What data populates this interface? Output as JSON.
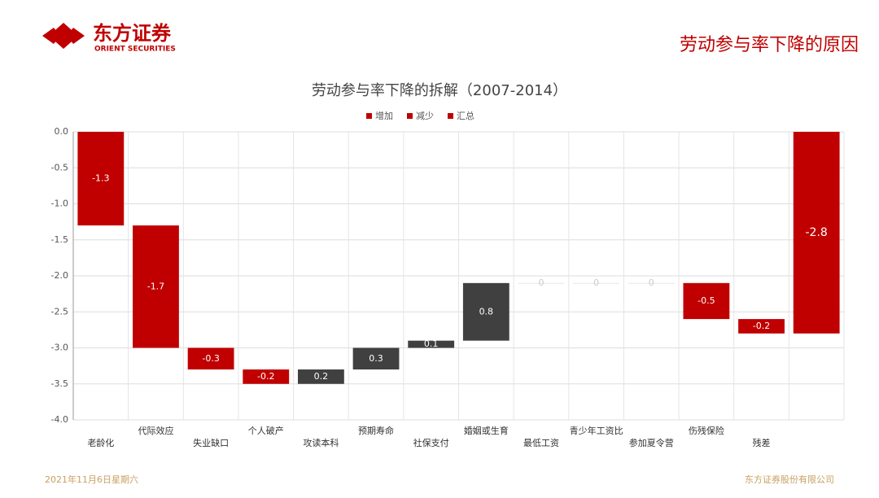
{
  "header": {
    "brand": "东方证券",
    "brand_en": "ORIENT SECURITIES",
    "slide_title": "劳动参与率下降的原因"
  },
  "footer": {
    "date": "2021年11月6日星期六",
    "company": "东方证券股份有限公司"
  },
  "chart_data": {
    "type": "waterfall",
    "title": "劳动参与率下降的拆解（2007-2014）",
    "legend": [
      {
        "name": "增加",
        "color": "#c00000"
      },
      {
        "name": "减少",
        "color": "#c00000"
      },
      {
        "name": "汇总",
        "color": "#c00000"
      }
    ],
    "categories": [
      "老龄化",
      "代际效应",
      "失业缺口",
      "个人破产",
      "攻读本科",
      "预期寿命",
      "社保支付",
      "婚姻或生育",
      "最低工资",
      "青少年工资比",
      "参加夏令营",
      "伤残保险",
      "残差",
      null
    ],
    "values": [
      -1.3,
      -1.7,
      -0.3,
      -0.2,
      0.2,
      0.3,
      0.1,
      0.8,
      0,
      0,
      0,
      -0.5,
      -0.2,
      -2.8
    ],
    "increase_color": "#404040",
    "decrease_color": "#c00000",
    "total_color": "#c00000",
    "last_is_total": true,
    "ylim": [
      -4,
      0
    ],
    "yticks": [
      {
        "value": 0,
        "label": "0.0"
      },
      -0.5,
      {
        "value": -1,
        "label": "-1.0"
      },
      -1.5,
      {
        "value": -2,
        "label": "-2.0"
      },
      -2.5,
      {
        "value": -3,
        "label": "-3.0"
      },
      -3.5,
      {
        "value": -4,
        "label": "-4.0"
      }
    ],
    "grid": true
  }
}
